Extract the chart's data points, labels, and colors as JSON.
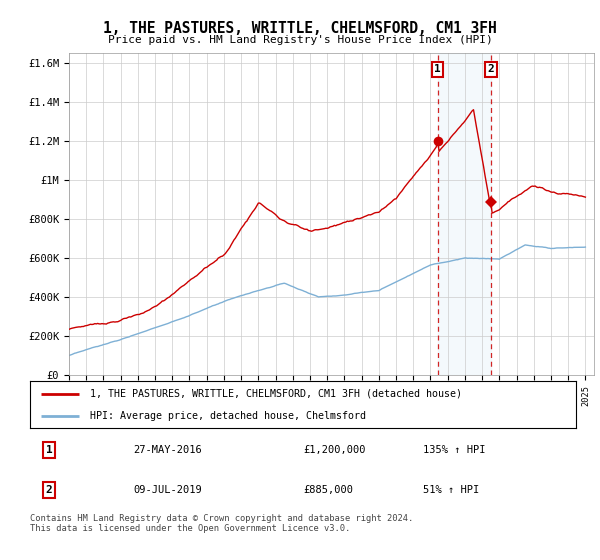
{
  "title": "1, THE PASTURES, WRITTLE, CHELMSFORD, CM1 3FH",
  "subtitle": "Price paid vs. HM Land Registry's House Price Index (HPI)",
  "ylabel_ticks": [
    "£0",
    "£200K",
    "£400K",
    "£600K",
    "£800K",
    "£1M",
    "£1.2M",
    "£1.4M",
    "£1.6M"
  ],
  "ytick_values": [
    0,
    200000,
    400000,
    600000,
    800000,
    1000000,
    1200000,
    1400000,
    1600000
  ],
  "ylim": [
    0,
    1650000
  ],
  "xlim": [
    1995,
    2025.5
  ],
  "sale1": {
    "date_num": 2016.42,
    "price": 1200000,
    "label": "1"
  },
  "sale2": {
    "date_num": 2019.52,
    "price": 885000,
    "label": "2"
  },
  "legend_line1": "1, THE PASTURES, WRITTLE, CHELMSFORD, CM1 3FH (detached house)",
  "legend_line2": "HPI: Average price, detached house, Chelmsford",
  "table_row1": [
    "1",
    "27-MAY-2016",
    "£1,200,000",
    "135% ↑ HPI"
  ],
  "table_row2": [
    "2",
    "09-JUL-2019",
    "£885,000",
    "51% ↑ HPI"
  ],
  "footnote": "Contains HM Land Registry data © Crown copyright and database right 2024.\nThis data is licensed under the Open Government Licence v3.0.",
  "hpi_color": "#7EB0D5",
  "price_color": "#CC0000",
  "dashed_color": "#CC0000",
  "shade_color": "#D6E8F5",
  "bg_color": "#FFFFFF",
  "grid_color": "#CCCCCC"
}
